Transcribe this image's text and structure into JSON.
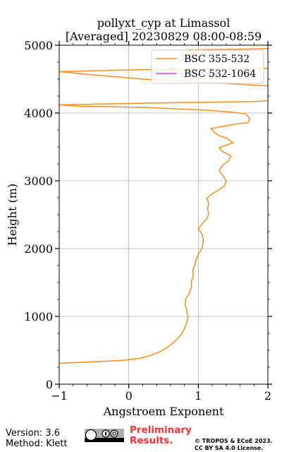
{
  "chart_data": {
    "type": "line",
    "title": "pollyxt_cyp at Limassol",
    "subtitle": "[Averaged] 20230829 08:00-08:59",
    "xlabel": "Angstroem Exponent",
    "ylabel": "Height (m)",
    "xlim": [
      -1,
      2
    ],
    "ylim": [
      0,
      5000
    ],
    "xticks": [
      "−1",
      "0",
      "1",
      "2"
    ],
    "yticks": [
      "0",
      "1000",
      "2000",
      "3000",
      "4000",
      "5000"
    ],
    "grid": true,
    "legend": "top-right",
    "series": [
      {
        "name": "BSC 355-532",
        "color": "#ff8c1a",
        "points": [
          [
            -1.0,
            310
          ],
          [
            -0.5,
            330
          ],
          [
            -0.1,
            350
          ],
          [
            0.15,
            380
          ],
          [
            0.3,
            420
          ],
          [
            0.45,
            480
          ],
          [
            0.58,
            560
          ],
          [
            0.68,
            650
          ],
          [
            0.76,
            740
          ],
          [
            0.8,
            820
          ],
          [
            0.84,
            920
          ],
          [
            0.85,
            1000
          ],
          [
            0.83,
            1100
          ],
          [
            0.81,
            1180
          ],
          [
            0.82,
            1260
          ],
          [
            0.87,
            1340
          ],
          [
            0.9,
            1430
          ],
          [
            0.9,
            1520
          ],
          [
            0.93,
            1600
          ],
          [
            0.92,
            1680
          ],
          [
            0.95,
            1760
          ],
          [
            0.97,
            1840
          ],
          [
            1.0,
            1920
          ],
          [
            1.05,
            2000
          ],
          [
            1.07,
            2080
          ],
          [
            1.07,
            2150
          ],
          [
            1.05,
            2220
          ],
          [
            1.0,
            2290
          ],
          [
            1.05,
            2360
          ],
          [
            1.12,
            2440
          ],
          [
            1.15,
            2510
          ],
          [
            1.13,
            2590
          ],
          [
            1.15,
            2670
          ],
          [
            1.12,
            2740
          ],
          [
            1.2,
            2810
          ],
          [
            1.3,
            2870
          ],
          [
            1.38,
            2930
          ],
          [
            1.4,
            3000
          ],
          [
            1.35,
            3080
          ],
          [
            1.3,
            3150
          ],
          [
            1.35,
            3230
          ],
          [
            1.43,
            3290
          ],
          [
            1.47,
            3370
          ],
          [
            1.35,
            3430
          ],
          [
            1.3,
            3490
          ],
          [
            1.5,
            3560
          ],
          [
            1.42,
            3620
          ],
          [
            1.27,
            3680
          ],
          [
            1.18,
            3770
          ],
          [
            1.5,
            3830
          ],
          [
            1.72,
            3860
          ],
          [
            1.74,
            3920
          ],
          [
            1.68,
            3990
          ],
          [
            1.5,
            4010
          ],
          [
            1.15,
            4040
          ],
          [
            0.3,
            4080
          ],
          [
            -0.7,
            4100
          ],
          [
            -1.0,
            4120
          ],
          [
            0.5,
            4150
          ],
          [
            1.8,
            4170
          ],
          [
            2.0,
            4180
          ]
        ],
        "points_upper": [
          [
            2.0,
            4400
          ],
          [
            1.3,
            4440
          ],
          [
            0.2,
            4500
          ],
          [
            -0.6,
            4570
          ],
          [
            -1.0,
            4610
          ],
          [
            0.2,
            4640
          ],
          [
            1.3,
            4650
          ],
          [
            2.0,
            4660
          ]
        ],
        "points_top": [
          [
            0.85,
            4930
          ],
          [
            1.8,
            4945
          ],
          [
            2.0,
            4950
          ]
        ]
      },
      {
        "name": "BSC 532-1064",
        "color": "#ff33ff",
        "points": []
      }
    ]
  },
  "footer": {
    "version": "Version: 3.6",
    "method": "Method: Klett",
    "preliminary_line1": "Preliminary",
    "preliminary_line2": "Results.",
    "copyright_line1": "© TROPOS & ECoE 2023.",
    "copyright_line2": "CC BY SA 4.0 License."
  }
}
